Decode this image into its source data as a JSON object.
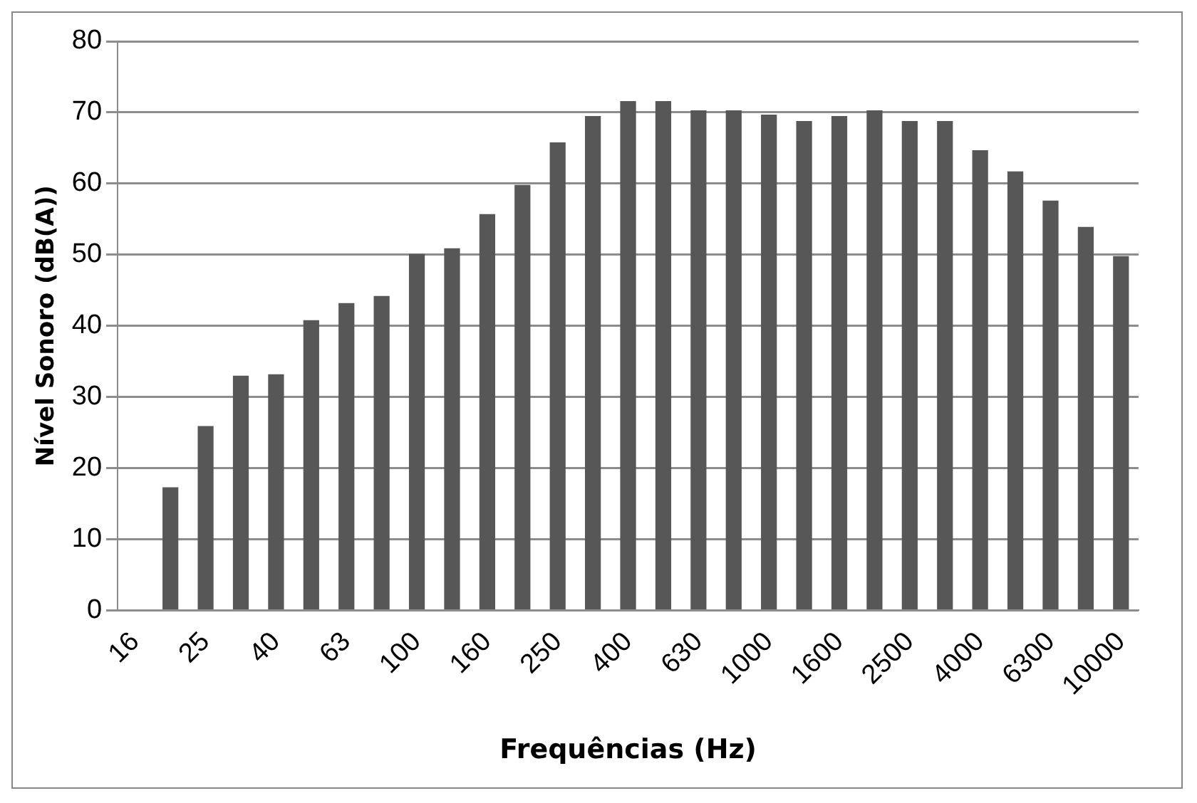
{
  "chart_data": {
    "type": "bar",
    "xlabel": "Frequências (Hz)",
    "ylabel": "Nível Sonoro (dB(A))",
    "categories": [
      "16",
      null,
      "25",
      null,
      "40",
      null,
      "63",
      null,
      "100",
      null,
      "160",
      null,
      "250",
      null,
      "400",
      null,
      "630",
      null,
      "1000",
      null,
      "1600",
      null,
      "2500",
      null,
      "4000",
      null,
      "6300",
      null,
      "10000"
    ],
    "values": [
      null,
      17.3,
      25.9,
      33.0,
      33.2,
      40.8,
      43.2,
      44.2,
      50.1,
      50.9,
      55.7,
      59.8,
      65.8,
      69.5,
      71.6,
      71.6,
      70.3,
      70.3,
      69.7,
      68.8,
      69.5,
      70.3,
      68.8,
      68.8,
      64.7,
      61.7,
      57.6,
      53.9,
      49.8
    ],
    "color": "#575757",
    "ylim": [
      0,
      80
    ],
    "yticks": [
      0,
      10,
      20,
      30,
      40,
      50,
      60,
      70,
      80
    ],
    "grid": "y",
    "legend": false
  }
}
